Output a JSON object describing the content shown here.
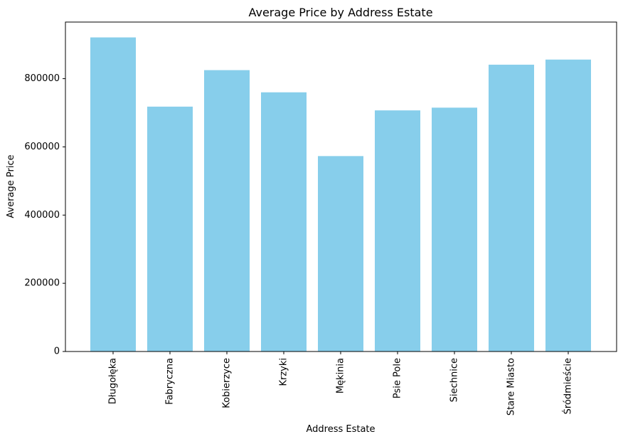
{
  "chart_data": {
    "type": "bar",
    "title": "Average Price by Address Estate",
    "xlabel": "Address Estate",
    "ylabel": "Average Price",
    "categories": [
      "Długołęka",
      "Fabryczna",
      "Kobierzyce",
      "Krzyki",
      "Mękinia",
      "Psie Pole",
      "Siechnice",
      "Stare Miasto",
      "Śródmieście"
    ],
    "values": [
      921000,
      718000,
      825000,
      760000,
      573000,
      707000,
      715000,
      841000,
      856000
    ],
    "ylim": [
      0,
      966000
    ],
    "yticks": [
      0,
      200000,
      400000,
      600000,
      800000
    ],
    "ytick_labels": [
      "0",
      "200000",
      "400000",
      "600000",
      "800000"
    ],
    "bar_color": "#87ceeb",
    "grid": false,
    "x_tick_rotation": "vertical"
  }
}
